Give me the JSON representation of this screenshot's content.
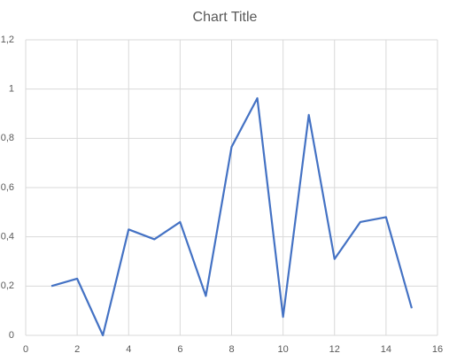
{
  "chart_data": {
    "type": "line",
    "title": "Chart Title",
    "x": [
      1,
      2,
      3,
      4,
      5,
      6,
      7,
      8,
      9,
      10,
      11,
      12,
      13,
      14,
      15
    ],
    "series": [
      {
        "color": "#4472c4",
        "values": [
          0.2,
          0.23,
          0,
          0.43,
          0.39,
          0.46,
          0.16,
          0.765,
          0.963,
          0.075,
          0.895,
          0.31,
          0.46,
          0.48,
          0.11
        ]
      }
    ],
    "xlim": [
      0,
      16
    ],
    "xticks": [
      0,
      2,
      4,
      6,
      8,
      10,
      12,
      14,
      16
    ],
    "ylim": [
      0,
      1.2
    ],
    "yticks": [
      0,
      {
        "value": 0.2,
        "label": "0,2"
      },
      {
        "value": 0.4,
        "label": "0,4"
      },
      {
        "value": 0.6,
        "label": "0,6"
      },
      {
        "value": 0.8,
        "label": "0,8"
      },
      1,
      {
        "value": 1.2,
        "label": "1,2"
      }
    ],
    "grid": true
  }
}
